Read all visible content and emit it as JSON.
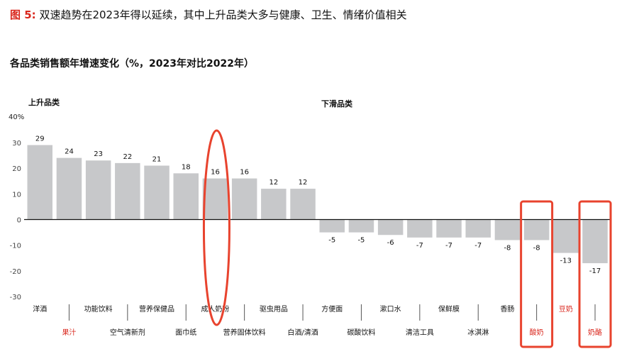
{
  "figure": {
    "label": "图 5:",
    "title": "双速趋势在2023年得以延续，其中上升品类大多与健康、卫生、情绪价值相关"
  },
  "chart_data": {
    "type": "bar",
    "title": "各品类销售额年增速变化（%，2023年对比2022年）",
    "unit": "%",
    "y_unit_label": "40%",
    "ylim": [
      -30,
      40
    ],
    "yticks": [
      30,
      20,
      10,
      0,
      -10,
      -20,
      -30
    ],
    "group_labels": [
      "上升品类",
      "下滑品类"
    ],
    "categories": [
      "洋酒",
      "果汁",
      "功能饮料",
      "空气清新剂",
      "营养保健品",
      "面巾纸",
      "成人奶粉",
      "营养固体饮料",
      "驱虫用品",
      "白酒/清酒",
      "方便面",
      "碳酸饮料",
      "漱口水",
      "清洁工具",
      "保鲜膜",
      "冰淇淋",
      "香肠",
      "酸奶",
      "豆奶",
      "奶酪"
    ],
    "values": [
      29,
      24,
      23,
      22,
      21,
      18,
      16,
      16,
      12,
      12,
      -5,
      -5,
      -6,
      -7,
      -7,
      -7,
      -8,
      -8,
      -13,
      -17
    ],
    "highlighted_categories": [
      "果汁",
      "酸奶",
      "豆奶",
      "奶酪"
    ],
    "circled_categories": [
      "成人奶粉",
      "酸奶",
      "奶酪"
    ],
    "colors": {
      "bar": "#c7c8ca",
      "highlight_text": "#d9261c",
      "annotation": "#e8432e",
      "axis": "#111111",
      "tick": "#444444"
    }
  }
}
